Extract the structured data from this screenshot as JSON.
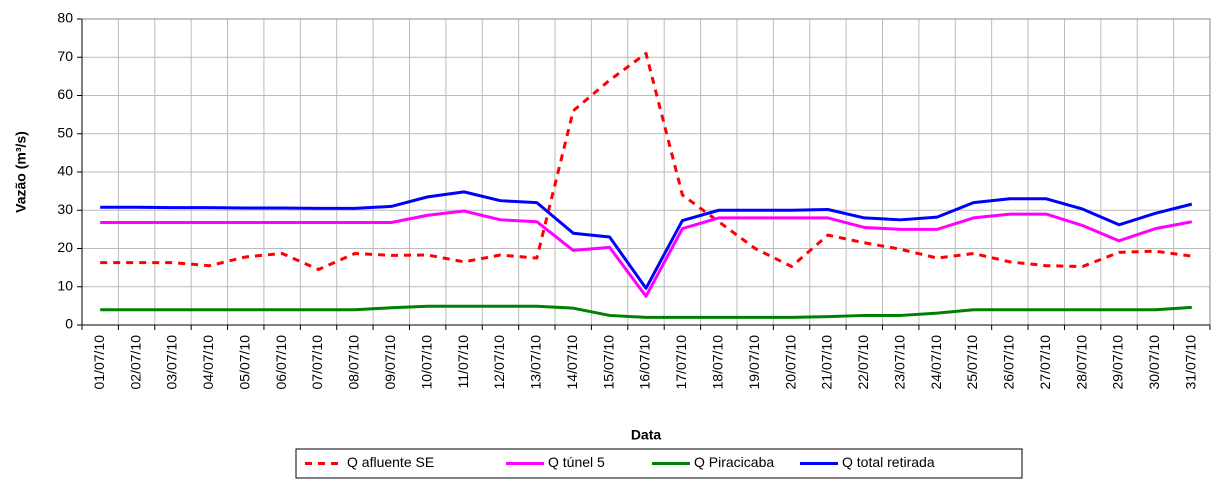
{
  "chart_data": {
    "type": "line",
    "x_label": "Data",
    "y_label": "Vazão (m³/s)",
    "categories": [
      "01/07/10",
      "02/07/10",
      "03/07/10",
      "04/07/10",
      "05/07/10",
      "06/07/10",
      "07/07/10",
      "08/07/10",
      "09/07/10",
      "10/07/10",
      "11/07/10",
      "12/07/10",
      "13/07/10",
      "14/07/10",
      "15/07/10",
      "16/07/10",
      "17/07/10",
      "18/07/10",
      "19/07/10",
      "20/07/10",
      "21/07/10",
      "22/07/10",
      "23/07/10",
      "24/07/10",
      "25/07/10",
      "26/07/10",
      "27/07/10",
      "28/07/10",
      "29/07/10",
      "30/07/10",
      "31/07/10"
    ],
    "series": [
      {
        "name": "Q afluente SE",
        "color": "#ff0000",
        "style": "dashed",
        "values": [
          16.3,
          16.3,
          16.3,
          15.5,
          17.8,
          18.7,
          14.5,
          18.7,
          18.2,
          18.3,
          16.5,
          18.3,
          17.5,
          56,
          64,
          71,
          34,
          27,
          20,
          15.3,
          23.5,
          21.5,
          19.8,
          17.5,
          18.7,
          16.5,
          15.5,
          15.3,
          19,
          19.3,
          18
        ]
      },
      {
        "name": "Q túnel 5",
        "color": "#ff00ff",
        "style": "solid",
        "values": [
          26.8,
          26.8,
          26.8,
          26.8,
          26.8,
          26.8,
          26.8,
          26.8,
          26.8,
          28.7,
          29.8,
          27.5,
          27,
          19.5,
          20.3,
          7.5,
          25.2,
          28,
          28,
          28,
          28,
          25.5,
          25,
          25,
          28,
          29,
          29,
          26,
          22,
          25.2,
          27
        ]
      },
      {
        "name": "Q Piracicaba",
        "color": "#008000",
        "style": "solid",
        "values": [
          4,
          4,
          4,
          4,
          4,
          4,
          4,
          4,
          4.5,
          4.9,
          4.9,
          4.9,
          4.9,
          4.4,
          2.5,
          2,
          2,
          2,
          2,
          2,
          2.2,
          2.5,
          2.5,
          3.1,
          4,
          4,
          4,
          4,
          4,
          4,
          4.6
        ]
      },
      {
        "name": "Q total retirada",
        "color": "#0000ff",
        "style": "solid",
        "values": [
          30.8,
          30.8,
          30.7,
          30.7,
          30.6,
          30.6,
          30.5,
          30.5,
          31,
          33.5,
          34.8,
          32.5,
          32,
          24,
          23,
          9.6,
          27.3,
          30,
          30,
          30,
          30.2,
          28,
          27.5,
          28.2,
          32,
          33,
          33,
          30.3,
          26.2,
          29.2,
          31.6
        ]
      }
    ],
    "ylim": [
      0,
      80
    ],
    "yticks": [
      0,
      10,
      20,
      30,
      40,
      50,
      60,
      70,
      80
    ],
    "grid": true
  }
}
